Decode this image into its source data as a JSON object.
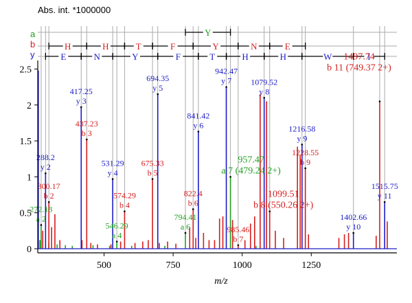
{
  "chart_data": {
    "type": "mass-spectrum",
    "y_title": "Abs. int. *1000000",
    "xlabel": "m/z",
    "xlim": [
      260,
      1560
    ],
    "ylim": [
      0,
      2.6
    ],
    "x_ticks": [
      500,
      750,
      1000,
      1250
    ],
    "y_ticks": [
      "0",
      "0.5",
      "1",
      "1.5",
      "2",
      "2.5"
    ],
    "y_tick_values": [
      0,
      0.5,
      1,
      1.5,
      2,
      2.5
    ],
    "colors": {
      "a": "#1fa01f",
      "b": "#d61c1c",
      "y": "#1c1cc8",
      "gray": "#aaaaaa",
      "frame": "#000000"
    },
    "ion_row_labels": [
      "a",
      "b",
      "y"
    ],
    "a_ladder_residues": [
      {
        "label": "Y",
        "from": 794.41,
        "to": 957.47
      }
    ],
    "b_ladder_residues": [
      {
        "label": "H",
        "from": 300.17,
        "to": 437.23
      },
      {
        "label": "H",
        "from": 437.23,
        "to": 574.29
      },
      {
        "label": "T",
        "from": 574.29,
        "to": 675.33
      },
      {
        "label": "F",
        "from": 675.33,
        "to": 822.4
      },
      {
        "label": "Y",
        "from": 822.4,
        "to": 985.46
      },
      {
        "label": "N",
        "from": 985.46,
        "to": 1099.51
      },
      {
        "label": "E",
        "from": 1099.51,
        "to": 1228.55
      }
    ],
    "y_ladder_residues": [
      {
        "label": "E",
        "from": 288.2,
        "to": 417.25
      },
      {
        "label": "N",
        "from": 417.25,
        "to": 531.29
      },
      {
        "label": "Y",
        "from": 531.29,
        "to": 694.35
      },
      {
        "label": "F",
        "from": 694.35,
        "to": 841.42
      },
      {
        "label": "T",
        "from": 841.42,
        "to": 942.47
      },
      {
        "label": "H",
        "from": 942.47,
        "to": 1079.52
      },
      {
        "label": "H",
        "from": 1079.52,
        "to": 1216.58
      },
      {
        "label": "W",
        "from": 1216.58,
        "to": 1402.66
      },
      {
        "label": "I",
        "from": 1402.66,
        "to": 1515.75
      }
    ],
    "annotated_peaks": [
      {
        "ion": "a",
        "mz": 272.18,
        "intensity": 0.33,
        "mz_label": "272.18",
        "name_label": "a 2"
      },
      {
        "ion": "b",
        "mz": 300.17,
        "intensity": 0.65,
        "mz_label": "300.17",
        "name_label": "b 2"
      },
      {
        "ion": "y",
        "mz": 288.2,
        "intensity": 1.05,
        "mz_label": "288.2",
        "name_label": "y 2"
      },
      {
        "ion": "y",
        "mz": 417.25,
        "intensity": 1.97,
        "mz_label": "417.25",
        "name_label": "y 3"
      },
      {
        "ion": "b",
        "mz": 437.23,
        "intensity": 1.52,
        "mz_label": "437.23",
        "name_label": "b 3"
      },
      {
        "ion": "y",
        "mz": 531.29,
        "intensity": 0.97,
        "mz_label": "531.29",
        "name_label": "y 4"
      },
      {
        "ion": "b",
        "mz": 574.29,
        "intensity": 0.52,
        "mz_label": "574.29",
        "name_label": "b 4"
      },
      {
        "ion": "a",
        "mz": 546.29,
        "intensity": 0.1,
        "mz_label": "546.29",
        "name_label": "a 4"
      },
      {
        "ion": "y",
        "mz": 694.35,
        "intensity": 2.15,
        "mz_label": "694.35",
        "name_label": "y 5"
      },
      {
        "ion": "b",
        "mz": 675.33,
        "intensity": 0.97,
        "mz_label": "675.33",
        "name_label": "b 5"
      },
      {
        "ion": "y",
        "mz": 841.42,
        "intensity": 1.63,
        "mz_label": "841.42",
        "name_label": "y 6"
      },
      {
        "ion": "b",
        "mz": 822.4,
        "intensity": 0.55,
        "mz_label": "822.4",
        "name_label": "b 6"
      },
      {
        "ion": "a",
        "mz": 794.41,
        "intensity": 0.22,
        "mz_label": "794.41",
        "name_label": "a 6"
      },
      {
        "ion": "y",
        "mz": 942.47,
        "intensity": 2.25,
        "mz_label": "942.47",
        "name_label": "y 7"
      },
      {
        "ion": "a",
        "mz": 957.47,
        "intensity": 1.0,
        "mz_label": "957.47",
        "name_label": "a 7 (479.24 2+)"
      },
      {
        "ion": "b",
        "mz": 985.46,
        "intensity": 0.05,
        "mz_label": "985.46",
        "name_label": "b 7"
      },
      {
        "ion": "y",
        "mz": 1079.52,
        "intensity": 2.1,
        "mz_label": "1079.52",
        "name_label": "y 8"
      },
      {
        "ion": "b",
        "mz": 1099.51,
        "intensity": 0.52,
        "mz_label": "1099.51",
        "name_label": "b 8 (550.26 2+)"
      },
      {
        "ion": "y",
        "mz": 1216.58,
        "intensity": 1.45,
        "mz_label": "1216.58",
        "name_label": "y 9"
      },
      {
        "ion": "b",
        "mz": 1228.55,
        "intensity": 1.12,
        "mz_label": "1228.55",
        "name_label": "b 9"
      },
      {
        "ion": "y",
        "mz": 1402.66,
        "intensity": 0.22,
        "mz_label": "1402.66",
        "name_label": "y 10"
      },
      {
        "ion": "b",
        "mz": 1497.74,
        "intensity": 2.05,
        "mz_label": "1497.74",
        "name_label": "b 11 (749.37 2+)"
      },
      {
        "ion": "y",
        "mz": 1515.75,
        "intensity": 0.65,
        "mz_label": "1515.75",
        "name_label": "y 11"
      }
    ],
    "unlabeled_peaks": [
      {
        "mz": 262,
        "intensity": 2.48,
        "color": "y"
      },
      {
        "mz": 278,
        "intensity": 0.25,
        "color": "b"
      },
      {
        "mz": 310,
        "intensity": 0.3,
        "color": "b"
      },
      {
        "mz": 322,
        "intensity": 0.48,
        "color": "b"
      },
      {
        "mz": 340,
        "intensity": 0.12,
        "color": "b"
      },
      {
        "mz": 420,
        "intensity": 0.12,
        "color": "b"
      },
      {
        "mz": 452,
        "intensity": 0.08,
        "color": "b"
      },
      {
        "mz": 476,
        "intensity": 0.06,
        "color": "b"
      },
      {
        "mz": 525,
        "intensity": 0.06,
        "color": "b"
      },
      {
        "mz": 560,
        "intensity": 0.1,
        "color": "b"
      },
      {
        "mz": 612,
        "intensity": 0.08,
        "color": "b"
      },
      {
        "mz": 640,
        "intensity": 0.1,
        "color": "b"
      },
      {
        "mz": 660,
        "intensity": 0.12,
        "color": "b"
      },
      {
        "mz": 700,
        "intensity": 0.08,
        "color": "b"
      },
      {
        "mz": 730,
        "intensity": 0.1,
        "color": "b"
      },
      {
        "mz": 760,
        "intensity": 0.07,
        "color": "b"
      },
      {
        "mz": 810,
        "intensity": 0.3,
        "color": "b"
      },
      {
        "mz": 832,
        "intensity": 0.15,
        "color": "b"
      },
      {
        "mz": 860,
        "intensity": 0.22,
        "color": "b"
      },
      {
        "mz": 880,
        "intensity": 0.12,
        "color": "b"
      },
      {
        "mz": 900,
        "intensity": 0.12,
        "color": "b"
      },
      {
        "mz": 918,
        "intensity": 0.42,
        "color": "b"
      },
      {
        "mz": 930,
        "intensity": 0.45,
        "color": "b"
      },
      {
        "mz": 965,
        "intensity": 0.4,
        "color": "b"
      },
      {
        "mz": 1010,
        "intensity": 0.12,
        "color": "b"
      },
      {
        "mz": 1030,
        "intensity": 0.35,
        "color": "b"
      },
      {
        "mz": 1045,
        "intensity": 0.45,
        "color": "b"
      },
      {
        "mz": 1065,
        "intensity": 2.15,
        "color": "b"
      },
      {
        "mz": 1088,
        "intensity": 2.05,
        "color": "b"
      },
      {
        "mz": 1120,
        "intensity": 0.25,
        "color": "b"
      },
      {
        "mz": 1150,
        "intensity": 0.15,
        "color": "b"
      },
      {
        "mz": 1200,
        "intensity": 1.42,
        "color": "b"
      },
      {
        "mz": 1210,
        "intensity": 1.3,
        "color": "b"
      },
      {
        "mz": 1240,
        "intensity": 0.2,
        "color": "b"
      },
      {
        "mz": 1350,
        "intensity": 0.15,
        "color": "b"
      },
      {
        "mz": 1370,
        "intensity": 0.2,
        "color": "b"
      },
      {
        "mz": 1385,
        "intensity": 0.22,
        "color": "b"
      },
      {
        "mz": 1485,
        "intensity": 0.18,
        "color": "b"
      },
      {
        "mz": 1525,
        "intensity": 0.38,
        "color": "b"
      },
      {
        "mz": 268,
        "intensity": 0.12,
        "color": "a"
      },
      {
        "mz": 300,
        "intensity": 0.08,
        "color": "a"
      },
      {
        "mz": 330,
        "intensity": 0.06,
        "color": "a"
      },
      {
        "mz": 360,
        "intensity": 0.05,
        "color": "a"
      },
      {
        "mz": 385,
        "intensity": 0.04,
        "color": "a"
      },
      {
        "mz": 460,
        "intensity": 0.05,
        "color": "a"
      },
      {
        "mz": 520,
        "intensity": 0.04,
        "color": "a"
      },
      {
        "mz": 600,
        "intensity": 0.04,
        "color": "a"
      },
      {
        "mz": 720,
        "intensity": 0.04,
        "color": "a"
      },
      {
        "mz": 1050,
        "intensity": 0.04,
        "color": "a"
      }
    ]
  }
}
